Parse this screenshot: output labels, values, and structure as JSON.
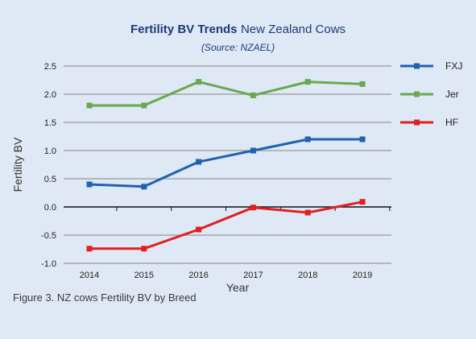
{
  "header": {
    "title_bold": "Fertility BV Trends",
    "title_rest": "New Zealand Cows",
    "source": "(Source: NZAEL)"
  },
  "caption": "Figure 3. NZ cows Fertility BV by Breed",
  "colors": {
    "background": "#dfe9f5",
    "gridline": "#999999",
    "axis": "#111111"
  },
  "chart_data": {
    "type": "line",
    "title": "Fertility BV Trends New Zealand Cows",
    "subtitle": "(Source: NZAEL)",
    "xlabel": "Year",
    "ylabel": "Fertility BV",
    "categories": [
      "2014",
      "2015",
      "2016",
      "2017",
      "2018",
      "2019"
    ],
    "ylim": [
      -1.0,
      2.5
    ],
    "yticks": [
      "2.5",
      "2.0",
      "1.5",
      "1.0",
      "0.5",
      "0.0",
      "-0.5",
      "-1.0"
    ],
    "grid": true,
    "legend_position": "right",
    "series": [
      {
        "name": "FXJ",
        "color": "#1f62b0",
        "values": [
          0.4,
          0.36,
          0.8,
          1.0,
          1.2,
          1.2
        ]
      },
      {
        "name": "Jer",
        "color": "#6aa84f",
        "values": [
          1.8,
          1.8,
          2.22,
          1.98,
          2.22,
          2.18
        ]
      },
      {
        "name": "HF",
        "color": "#e02020",
        "values": [
          -0.74,
          -0.74,
          -0.4,
          -0.01,
          -0.1,
          0.09
        ]
      }
    ]
  }
}
